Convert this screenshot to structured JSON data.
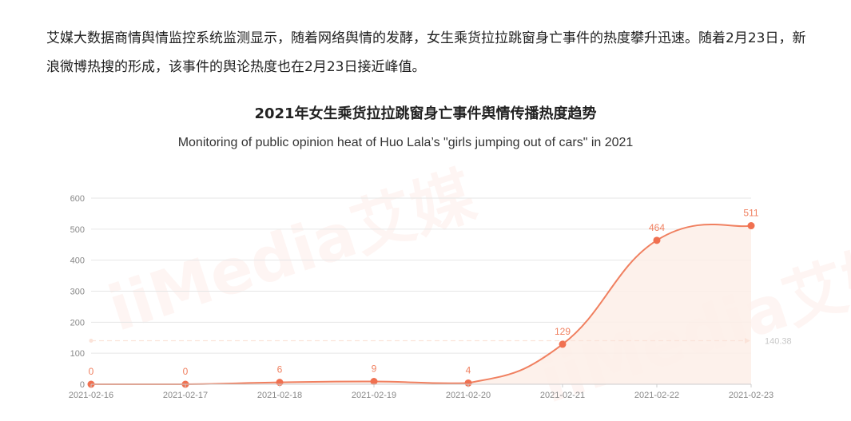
{
  "article": {
    "paragraph": "艾媒大数据商情舆情监控系统监测显示，随着网络舆情的发酵，女生乘货拉拉跳窗身亡事件的热度攀升迅速。随着2月23日，新浪微博热搜的形成，该事件的舆论热度也在2月23日接近峰值。"
  },
  "watermark": {
    "text1": "iiMedia艾媒",
    "text2": "iiMedia艾媒"
  },
  "chart_data": {
    "type": "area",
    "title": "2021年女生乘货拉拉跳窗身亡事件舆情传播热度趋势",
    "subtitle": "Monitoring of public opinion heat of Huo Lala’s \"girls jumping out of cars\" in 2021",
    "categories": [
      "2021-02-16",
      "2021-02-17",
      "2021-02-18",
      "2021-02-19",
      "2021-02-20",
      "2021-02-21",
      "2021-02-22",
      "2021-02-23"
    ],
    "values": [
      0,
      0,
      6,
      9,
      4,
      129,
      464,
      511
    ],
    "data_labels": [
      "0",
      "0",
      "6",
      "9",
      "4",
      "129",
      "464",
      "511"
    ],
    "yticks": [
      0,
      100,
      200,
      300,
      400,
      500,
      600
    ],
    "ylim": [
      0,
      600
    ],
    "average_marker": {
      "value": 140.38,
      "label": "140.38"
    },
    "grid": true,
    "colors": {
      "line": "#f08060",
      "point": "#f07050",
      "fill": "#fdeee8",
      "label": "#f08060",
      "axis_text": "#888888",
      "grid": "#e6e6e6",
      "avg_line": "#fbe3d9",
      "avg_label": "#c8c8c8"
    }
  }
}
